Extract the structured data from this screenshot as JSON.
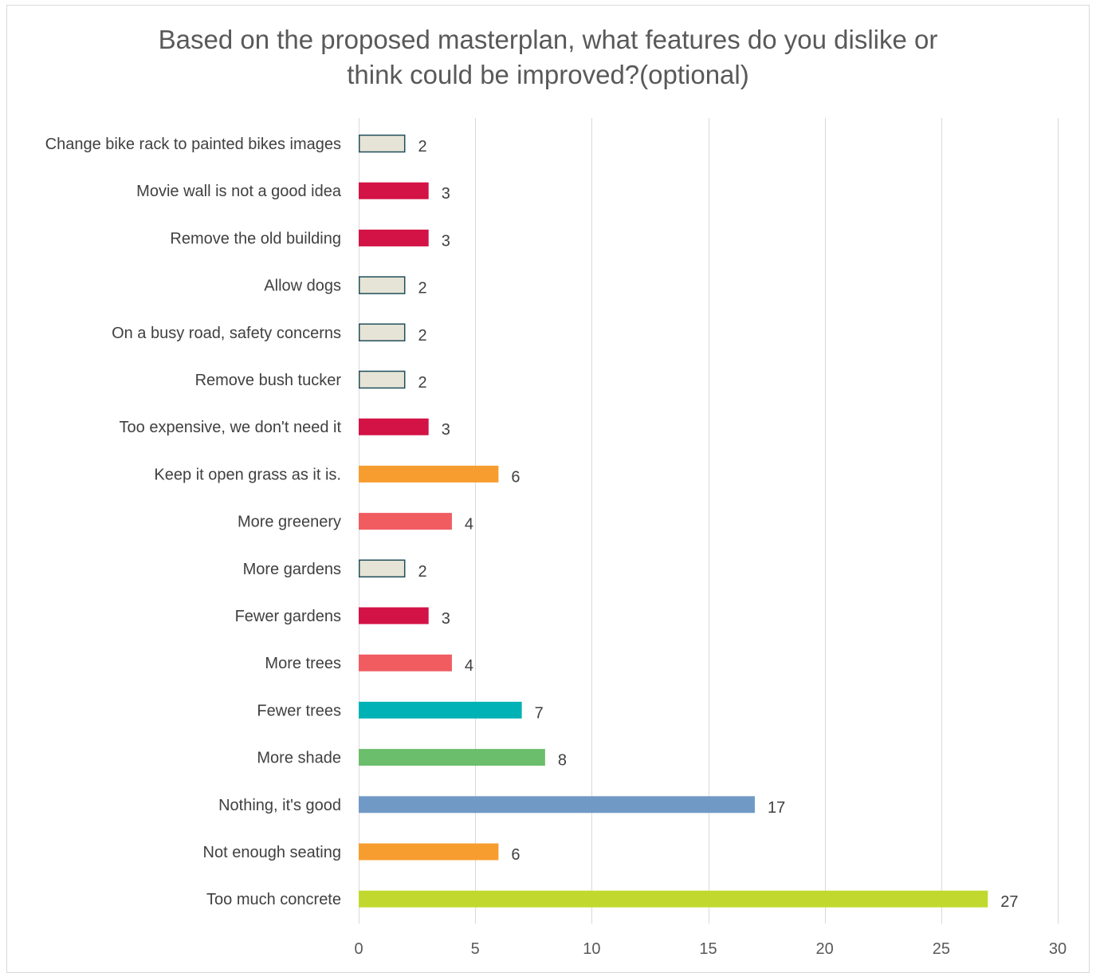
{
  "chart_data": {
    "type": "bar",
    "orientation": "horizontal",
    "title_lines": [
      "Based on the proposed masterplan, what features do you dislike or",
      "think could be improved?(optional)"
    ],
    "categories": [
      "Change bike rack to painted bikes images",
      "Movie wall is not a good idea",
      "Remove the old building",
      "Allow dogs",
      "On a busy road, safety concerns",
      "Remove bush tucker",
      "Too expensive, we don't need it",
      "Keep it open grass as it is.",
      "More greenery",
      "More gardens",
      "Fewer gardens",
      "More trees",
      "Fewer trees",
      "More shade",
      "Nothing, it's good",
      "Not enough seating",
      "Too much concrete"
    ],
    "values": [
      2,
      3,
      3,
      2,
      2,
      2,
      3,
      6,
      4,
      2,
      3,
      4,
      7,
      8,
      17,
      6,
      27
    ],
    "colors": [
      "#e6e4d6",
      "#d31245",
      "#d31245",
      "#e6e4d6",
      "#e6e4d6",
      "#e6e4d6",
      "#d31245",
      "#f79d2f",
      "#f05c60",
      "#e6e4d6",
      "#d31245",
      "#f05c60",
      "#00b2b5",
      "#6bbe6b",
      "#7199c6",
      "#f79d2f",
      "#c1d92e"
    ],
    "outlined_color": "#1f4e5a",
    "xlim": [
      0,
      30
    ],
    "xticks": [
      0,
      5,
      10,
      15,
      20,
      25,
      30
    ],
    "grid": true,
    "data_labels": true,
    "legend": "none"
  }
}
